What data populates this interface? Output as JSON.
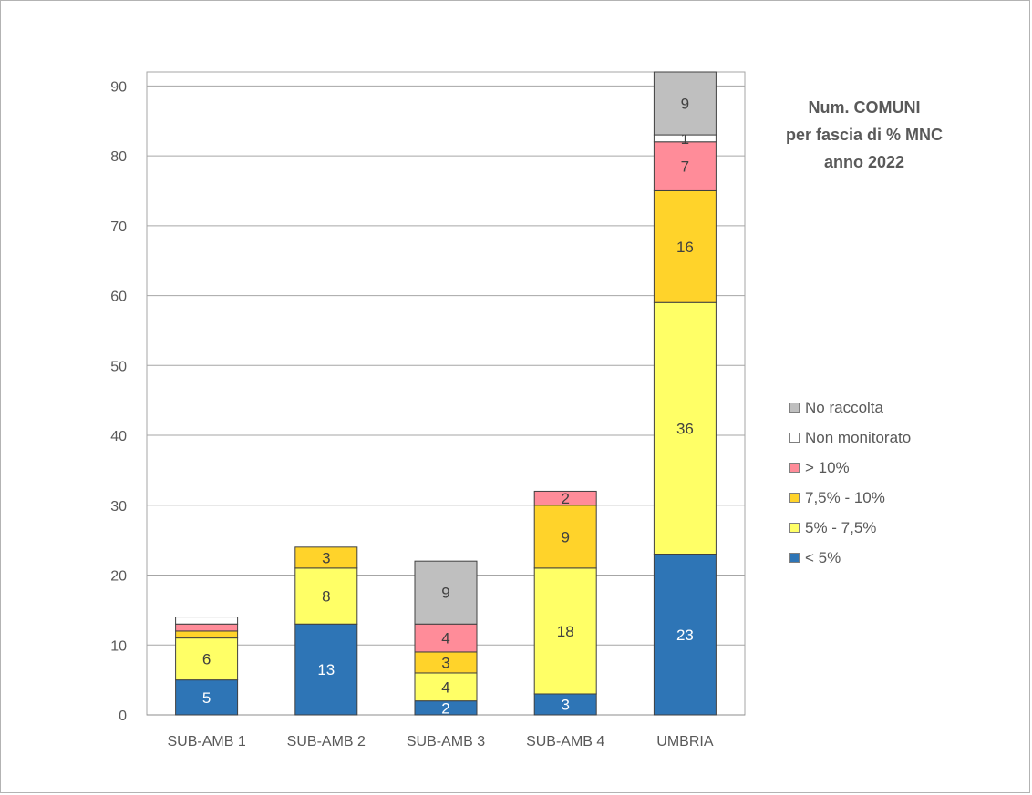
{
  "chart_data": {
    "type": "bar",
    "stacked": true,
    "title_lines": [
      "Num. COMUNI",
      "per fascia di % MNC",
      "anno 2022"
    ],
    "categories": [
      "SUB-AMB 1",
      "SUB-AMB 2",
      "SUB-AMB 3",
      "SUB-AMB 4",
      "UMBRIA"
    ],
    "ylim": [
      0,
      92
    ],
    "yticks": [
      0,
      10,
      20,
      30,
      40,
      50,
      60,
      70,
      80,
      90
    ],
    "grid": true,
    "legend_position": "right",
    "series": [
      {
        "name": "< 5%",
        "color": "#2e75b6",
        "label_color": "#ffffff",
        "values": [
          5,
          13,
          2,
          3,
          23
        ]
      },
      {
        "name": "5% - 7,5%",
        "color": "#ffff66",
        "label_color": "#404040",
        "values": [
          6,
          8,
          4,
          18,
          36
        ]
      },
      {
        "name": "7,5% - 10%",
        "color": "#ffd32a",
        "label_color": "#404040",
        "values": [
          1,
          3,
          3,
          9,
          16
        ]
      },
      {
        "name": "> 10%",
        "color": "#ff8c99",
        "label_color": "#404040",
        "values": [
          1,
          0,
          4,
          2,
          7
        ]
      },
      {
        "name": "Non monitorato",
        "color": "#ffffff",
        "label_color": "#404040",
        "values": [
          1,
          0,
          0,
          0,
          1
        ]
      },
      {
        "name": "No raccolta",
        "color": "#bfbfbf",
        "label_color": "#404040",
        "values": [
          0,
          0,
          9,
          0,
          9
        ]
      }
    ],
    "shown_labels": [
      [
        true,
        true,
        true,
        true,
        true
      ],
      [
        true,
        true,
        true,
        true,
        true
      ],
      [
        false,
        true,
        true,
        true,
        true
      ],
      [
        false,
        false,
        true,
        true,
        true
      ],
      [
        false,
        false,
        false,
        false,
        true
      ],
      [
        false,
        false,
        true,
        false,
        true
      ]
    ]
  }
}
